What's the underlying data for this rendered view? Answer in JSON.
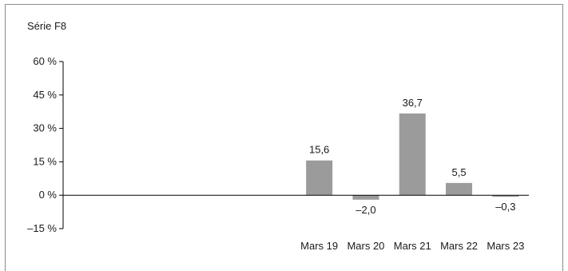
{
  "chart_data": {
    "type": "bar",
    "title": "Série F8",
    "categories": [
      "",
      "",
      "",
      "",
      "",
      "Mars 19",
      "Mars 20",
      "Mars 21",
      "Mars 22",
      "Mars 23"
    ],
    "values": [
      null,
      null,
      null,
      null,
      null,
      15.6,
      -2.0,
      36.7,
      5.5,
      -0.3
    ],
    "data_labels": [
      "",
      "",
      "",
      "",
      "",
      "15,6",
      "–2,0",
      "36,7",
      "5,5",
      "–0,3"
    ],
    "ylim": [
      -15,
      60
    ],
    "yticks": [
      60,
      45,
      30,
      15,
      0,
      -15
    ],
    "ytick_labels": [
      "60 %",
      "45 %",
      "30 %",
      "15 %",
      "0 %",
      "–15 %"
    ],
    "xlabel": "",
    "ylabel": "",
    "grid": false,
    "bar_color": "#9b9b9b"
  }
}
